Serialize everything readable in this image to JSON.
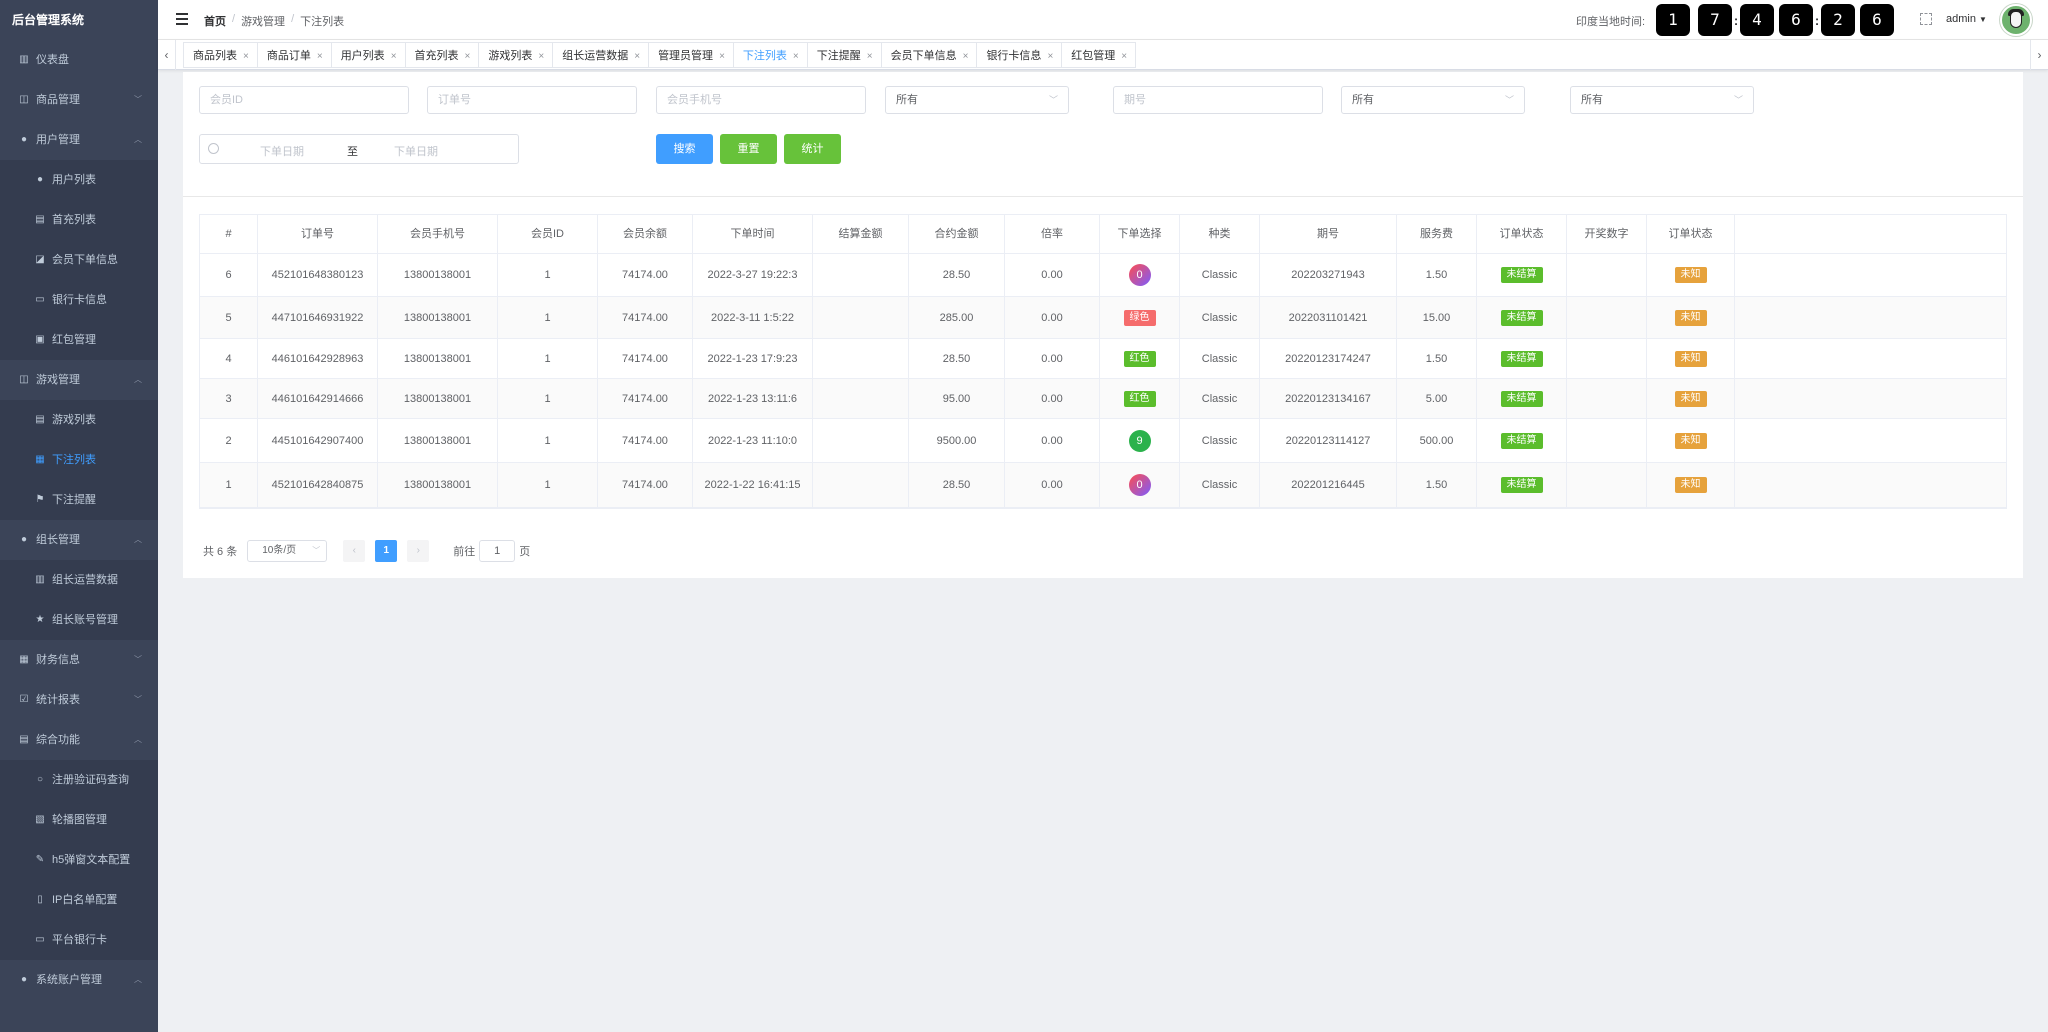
{
  "app": {
    "title": "后台管理系统"
  },
  "sidebar": {
    "items": [
      {
        "label": "仪表盘",
        "icon": "dashboard-icon",
        "sub": false,
        "arrow": ""
      },
      {
        "label": "商品管理",
        "icon": "bag-icon",
        "sub": false,
        "arrow": "﹀"
      },
      {
        "label": "用户管理",
        "icon": "user-icon",
        "sub": false,
        "arrow": "︿"
      },
      {
        "label": "用户列表",
        "icon": "user-icon",
        "sub": true,
        "arrow": ""
      },
      {
        "label": "首充列表",
        "icon": "document-icon",
        "sub": true,
        "arrow": ""
      },
      {
        "label": "会员下单信息",
        "icon": "shopping-icon",
        "sub": true,
        "arrow": ""
      },
      {
        "label": "银行卡信息",
        "icon": "card-icon",
        "sub": true,
        "arrow": ""
      },
      {
        "label": "红包管理",
        "icon": "wallet-icon",
        "sub": true,
        "arrow": ""
      },
      {
        "label": "游戏管理",
        "icon": "bag-icon",
        "sub": false,
        "arrow": "︿"
      },
      {
        "label": "游戏列表",
        "icon": "document-icon",
        "sub": true,
        "arrow": ""
      },
      {
        "label": "下注列表",
        "icon": "clipboard-icon",
        "sub": true,
        "arrow": "",
        "active": true
      },
      {
        "label": "下注提醒",
        "icon": "flag-icon",
        "sub": true,
        "arrow": ""
      },
      {
        "label": "组长管理",
        "icon": "user-icon",
        "sub": false,
        "arrow": "︿"
      },
      {
        "label": "组长运营数据",
        "icon": "chart-icon",
        "sub": true,
        "arrow": ""
      },
      {
        "label": "组长账号管理",
        "icon": "star-icon",
        "sub": true,
        "arrow": ""
      },
      {
        "label": "财务信息",
        "icon": "clipboard-icon",
        "sub": false,
        "arrow": "﹀"
      },
      {
        "label": "统计报表",
        "icon": "checkbox-icon",
        "sub": false,
        "arrow": "﹀"
      },
      {
        "label": "综合功能",
        "icon": "document-icon",
        "sub": false,
        "arrow": "︿"
      },
      {
        "label": "注册验证码查询",
        "icon": "search-icon",
        "sub": true,
        "arrow": ""
      },
      {
        "label": "轮播图管理",
        "icon": "picture-icon",
        "sub": true,
        "arrow": ""
      },
      {
        "label": "h5弹窗文本配置",
        "icon": "edit-icon",
        "sub": true,
        "arrow": ""
      },
      {
        "label": "IP白名单配置",
        "icon": "phone-icon",
        "sub": true,
        "arrow": ""
      },
      {
        "label": "平台银行卡",
        "icon": "card-icon",
        "sub": true,
        "arrow": ""
      },
      {
        "label": "系统账户管理",
        "icon": "user-icon",
        "sub": false,
        "arrow": "︿"
      }
    ]
  },
  "header": {
    "breadcrumb": [
      "首页",
      "游戏管理",
      "下注列表"
    ],
    "clock_label": "印度当地时间:",
    "clock_digits": [
      "1",
      "7",
      "4",
      "6",
      "2",
      "6"
    ],
    "user": "admin"
  },
  "tabs": [
    {
      "label": "商品列表"
    },
    {
      "label": "商品订单"
    },
    {
      "label": "用户列表"
    },
    {
      "label": "首充列表"
    },
    {
      "label": "游戏列表"
    },
    {
      "label": "组长运营数据"
    },
    {
      "label": "管理员管理"
    },
    {
      "label": "下注列表",
      "active": true
    },
    {
      "label": "下注提醒"
    },
    {
      "label": "会员下单信息"
    },
    {
      "label": "银行卡信息"
    },
    {
      "label": "红包管理"
    }
  ],
  "filters": {
    "member_id_placeholder": "会员ID",
    "order_no_placeholder": "订单号",
    "phone_placeholder": "会员手机号",
    "select1": "所有",
    "period_placeholder": "期号",
    "select2": "所有",
    "select3": "所有",
    "date_start_placeholder": "下单日期",
    "date_to": "至",
    "date_end_placeholder": "下单日期",
    "search_label": "搜索",
    "reset_label": "重置",
    "stats_label": "统计"
  },
  "table": {
    "headers": [
      "#",
      "订单号",
      "会员手机号",
      "会员ID",
      "会员余额",
      "下单时间",
      "结算金额",
      "合约金额",
      "倍率",
      "下单选择",
      "种类",
      "期号",
      "服务费",
      "订单状态",
      "开奖数字",
      "订单状态"
    ],
    "rows": [
      {
        "n": "6",
        "order": "452101648380123",
        "phone": "13800138001",
        "mid": "1",
        "balance": "74174.00",
        "time": "2022-3-27 19:22:3",
        "settle": "",
        "amount": "28.50",
        "rate": "0.00",
        "choice": "0",
        "choice_style": "ball-grad",
        "kind": "Classic",
        "period": "202203271943",
        "fee": "1.50",
        "status": "未结算",
        "num": "",
        "status2": "未知"
      },
      {
        "n": "5",
        "order": "447101646931922",
        "phone": "13800138001",
        "mid": "1",
        "balance": "74174.00",
        "time": "2022-3-11 1:5:22",
        "settle": "",
        "amount": "285.00",
        "rate": "0.00",
        "choice": "绿色",
        "choice_style": "chip-red",
        "kind": "Classic",
        "period": "2022031101421",
        "fee": "15.00",
        "status": "未结算",
        "num": "",
        "status2": "未知"
      },
      {
        "n": "4",
        "order": "446101642928963",
        "phone": "13800138001",
        "mid": "1",
        "balance": "74174.00",
        "time": "2022-1-23 17:9:23",
        "settle": "",
        "amount": "28.50",
        "rate": "0.00",
        "choice": "红色",
        "choice_style": "chip-green",
        "kind": "Classic",
        "period": "20220123174247",
        "fee": "1.50",
        "status": "未结算",
        "num": "",
        "status2": "未知"
      },
      {
        "n": "3",
        "order": "446101642914666",
        "phone": "13800138001",
        "mid": "1",
        "balance": "74174.00",
        "time": "2022-1-23 13:11:6",
        "settle": "",
        "amount": "95.00",
        "rate": "0.00",
        "choice": "红色",
        "choice_style": "chip-green",
        "kind": "Classic",
        "period": "20220123134167",
        "fee": "5.00",
        "status": "未结算",
        "num": "",
        "status2": "未知"
      },
      {
        "n": "2",
        "order": "445101642907400",
        "phone": "13800138001",
        "mid": "1",
        "balance": "74174.00",
        "time": "2022-1-23 11:10:0",
        "settle": "",
        "amount": "9500.00",
        "rate": "0.00",
        "choice": "9",
        "choice_style": "ball-green",
        "kind": "Classic",
        "period": "20220123114127",
        "fee": "500.00",
        "status": "未结算",
        "num": "",
        "status2": "未知"
      },
      {
        "n": "1",
        "order": "452101642840875",
        "phone": "13800138001",
        "mid": "1",
        "balance": "74174.00",
        "time": "2022-1-22 16:41:15",
        "settle": "",
        "amount": "28.50",
        "rate": "0.00",
        "choice": "0",
        "choice_style": "ball-grad",
        "kind": "Classic",
        "period": "202201216445",
        "fee": "1.50",
        "status": "未结算",
        "num": "",
        "status2": "未知"
      }
    ]
  },
  "pagination": {
    "total": "共 6 条",
    "page_size": "10条/页",
    "current": "1",
    "goto_label": "前往",
    "goto_value": "1",
    "page_suffix": "页"
  }
}
